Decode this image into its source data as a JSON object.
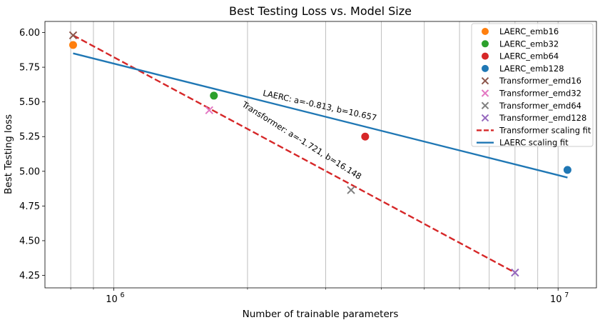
{
  "chart_data": {
    "type": "scatter",
    "title": "Best Testing Loss vs. Model Size",
    "xlabel": "Number of trainable parameters",
    "ylabel": "Best Testing loss",
    "xscale": "log",
    "xlim": [
      700000,
      12200000
    ],
    "ylim": [
      4.16,
      6.08
    ],
    "yticks": [
      4.25,
      4.5,
      4.75,
      5.0,
      5.25,
      5.5,
      5.75,
      6.0
    ],
    "ytick_labels": [
      "4.25",
      "4.50",
      "4.75",
      "5.00",
      "5.25",
      "5.50",
      "5.75",
      "6.00"
    ],
    "xticks_major": [
      {
        "value": 1000000,
        "base": "10",
        "exp": "6"
      },
      {
        "value": 10000000,
        "base": "10",
        "exp": "7"
      }
    ],
    "xgrid": [
      800000,
      900000,
      1000000,
      2000000,
      3000000,
      4000000,
      5000000,
      6000000,
      7000000,
      8000000,
      9000000,
      10000000
    ],
    "grid": "x-only",
    "legend_position": "top-right",
    "points": [
      {
        "name": "LAERC_emb16",
        "x": 810000,
        "y": 5.91,
        "marker": "o",
        "color": "#ff7f0e"
      },
      {
        "name": "LAERC_emb32",
        "x": 1680000,
        "y": 5.545,
        "marker": "o",
        "color": "#2ca02c"
      },
      {
        "name": "LAERC_emb64",
        "x": 3680000,
        "y": 5.25,
        "marker": "o",
        "color": "#d62728"
      },
      {
        "name": "LAERC_emb128",
        "x": 10500000,
        "y": 5.01,
        "marker": "o",
        "color": "#1f77b4"
      },
      {
        "name": "Transformer_emd16",
        "x": 810000,
        "y": 5.98,
        "marker": "x",
        "color": "#8c564b"
      },
      {
        "name": "Transformer_emd32",
        "x": 1640000,
        "y": 5.44,
        "marker": "x",
        "color": "#e377c2"
      },
      {
        "name": "Transformer_emd64",
        "x": 3420000,
        "y": 4.865,
        "marker": "x",
        "color": "#7f7f7f"
      },
      {
        "name": "Transformer_emd128",
        "x": 8000000,
        "y": 4.27,
        "marker": "x",
        "color": "#9467bd"
      }
    ],
    "fits": [
      {
        "name": "Transformer scaling fit",
        "x": [
          810000,
          8000000
        ],
        "y": [
          5.98,
          4.27
        ],
        "style": "dashed",
        "color": "#d62728"
      },
      {
        "name": "LAERC scaling fit",
        "x": [
          810000,
          10500000
        ],
        "y": [
          5.85,
          4.955
        ],
        "style": "solid",
        "color": "#1f77b4"
      }
    ],
    "annotations": [
      {
        "text": "LAERC: a=-0.813, b=10.657",
        "x": 2900000,
        "y": 5.455,
        "angle": 12.5
      },
      {
        "text": "Transformer: a=-1.721, b=16.148",
        "x": 2630000,
        "y": 5.205,
        "angle": 32
      }
    ]
  }
}
